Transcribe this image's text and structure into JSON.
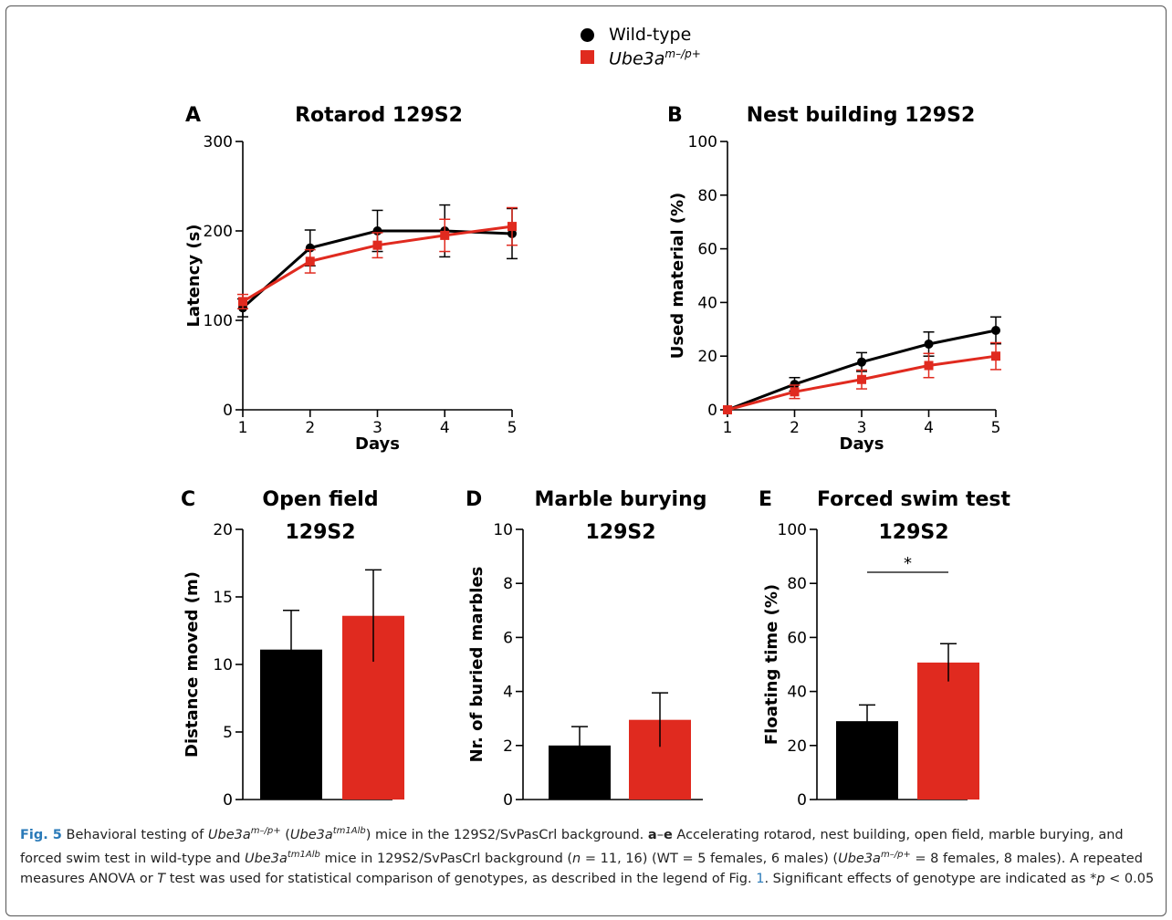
{
  "legend": {
    "wildtype_label": "Wild-type",
    "mutant_base": "Ube3a",
    "mutant_sup": "m–/p+"
  },
  "colors": {
    "wildtype": "#000000",
    "mutant": "#e02a1f"
  },
  "chart_data": [
    {
      "id": "A",
      "type": "line",
      "letter": "A",
      "title": "Rotarod 129S2",
      "xlabel": "Days",
      "ylabel": "Latency (s)",
      "x": [
        1,
        2,
        3,
        4,
        5
      ],
      "xticks": [
        "1",
        "2",
        "3",
        "4",
        "5"
      ],
      "ylim": [
        0,
        300
      ],
      "yticks": [
        0,
        100,
        200,
        300
      ],
      "series": [
        {
          "key": "wildtype",
          "values": [
            114,
            181,
            200,
            200,
            197
          ],
          "err": [
            10,
            20,
            23,
            29,
            28
          ]
        },
        {
          "key": "mutant",
          "values": [
            121,
            166,
            184,
            195,
            205
          ],
          "err": [
            8,
            13,
            14,
            18,
            21
          ]
        }
      ]
    },
    {
      "id": "B",
      "type": "line",
      "letter": "B",
      "title": "Nest building 129S2",
      "xlabel": "Days",
      "ylabel": "Used material (%)",
      "x": [
        1,
        2,
        3,
        4,
        5
      ],
      "xticks": [
        "1",
        "2",
        "3",
        "4",
        "5"
      ],
      "ylim": [
        0,
        100
      ],
      "yticks": [
        0,
        20,
        40,
        60,
        80,
        100
      ],
      "series": [
        {
          "key": "wildtype",
          "values": [
            0,
            9.5,
            17.8,
            24.5,
            29.6
          ],
          "err": [
            0,
            2.5,
            3.5,
            4.5,
            5
          ]
        },
        {
          "key": "mutant",
          "values": [
            0,
            6.7,
            11.3,
            16.5,
            20
          ],
          "err": [
            0,
            2.5,
            3.5,
            4.5,
            5
          ]
        }
      ]
    },
    {
      "id": "C",
      "type": "bar",
      "letter": "C",
      "title": [
        "Open field",
        "129S2"
      ],
      "ylabel": "Distance moved (m)",
      "ylim": [
        0,
        20
      ],
      "yticks": [
        0,
        5,
        10,
        15,
        20
      ],
      "bars": [
        {
          "key": "wildtype",
          "value": 11.1,
          "err": 2.9
        },
        {
          "key": "mutant",
          "value": 13.6,
          "err": 3.4
        }
      ]
    },
    {
      "id": "D",
      "type": "bar",
      "letter": "D",
      "title": [
        "Marble burying",
        "129S2"
      ],
      "ylabel": "Nr. of buried marbles",
      "ylim": [
        0,
        10
      ],
      "yticks": [
        0,
        2,
        4,
        6,
        8,
        10
      ],
      "bars": [
        {
          "key": "wildtype",
          "value": 2.0,
          "err": 0.7
        },
        {
          "key": "mutant",
          "value": 2.95,
          "err": 1.0
        }
      ]
    },
    {
      "id": "E",
      "type": "bar",
      "letter": "E",
      "title": [
        "Forced swim test",
        "129S2"
      ],
      "ylabel": "Floating time (%)",
      "ylim": [
        0,
        100
      ],
      "yticks": [
        0,
        20,
        40,
        60,
        80,
        100
      ],
      "significance": "*",
      "bars": [
        {
          "key": "wildtype",
          "value": 29,
          "err": 6
        },
        {
          "key": "mutant",
          "value": 50.7,
          "err": 7
        }
      ]
    }
  ],
  "caption": {
    "fig_label": "Fig. 5",
    "p1": "Behavioral testing of ",
    "gene": "Ube3a",
    "sup_m": "m–/p+",
    "p2": " (",
    "sup_tm": "tm1Alb",
    "p3": ") mice in the 129S2/SvPasCrl background. ",
    "range_a": "a",
    "dash": "–",
    "range_e": "e",
    "p4": " Accelerating rotarod, nest building, open field, marble burying, and forced swim test in wild-type and ",
    "p5": " mice in 129S2/SvPasCrl background (",
    "n": "n",
    "p6": " = 11, 16) (WT = 5 females, 6 males) (",
    "p7": " = 8 females, 8 males). A repeated measures ANOVA or ",
    "T": "T",
    "p8": " test was used for statistical comparison of genotypes, as described in the legend of Fig. ",
    "fig_ref": "1",
    "p9": ". Significant effects of genotype are indicated as *",
    "p": "p",
    "p10": " < 0.05"
  }
}
